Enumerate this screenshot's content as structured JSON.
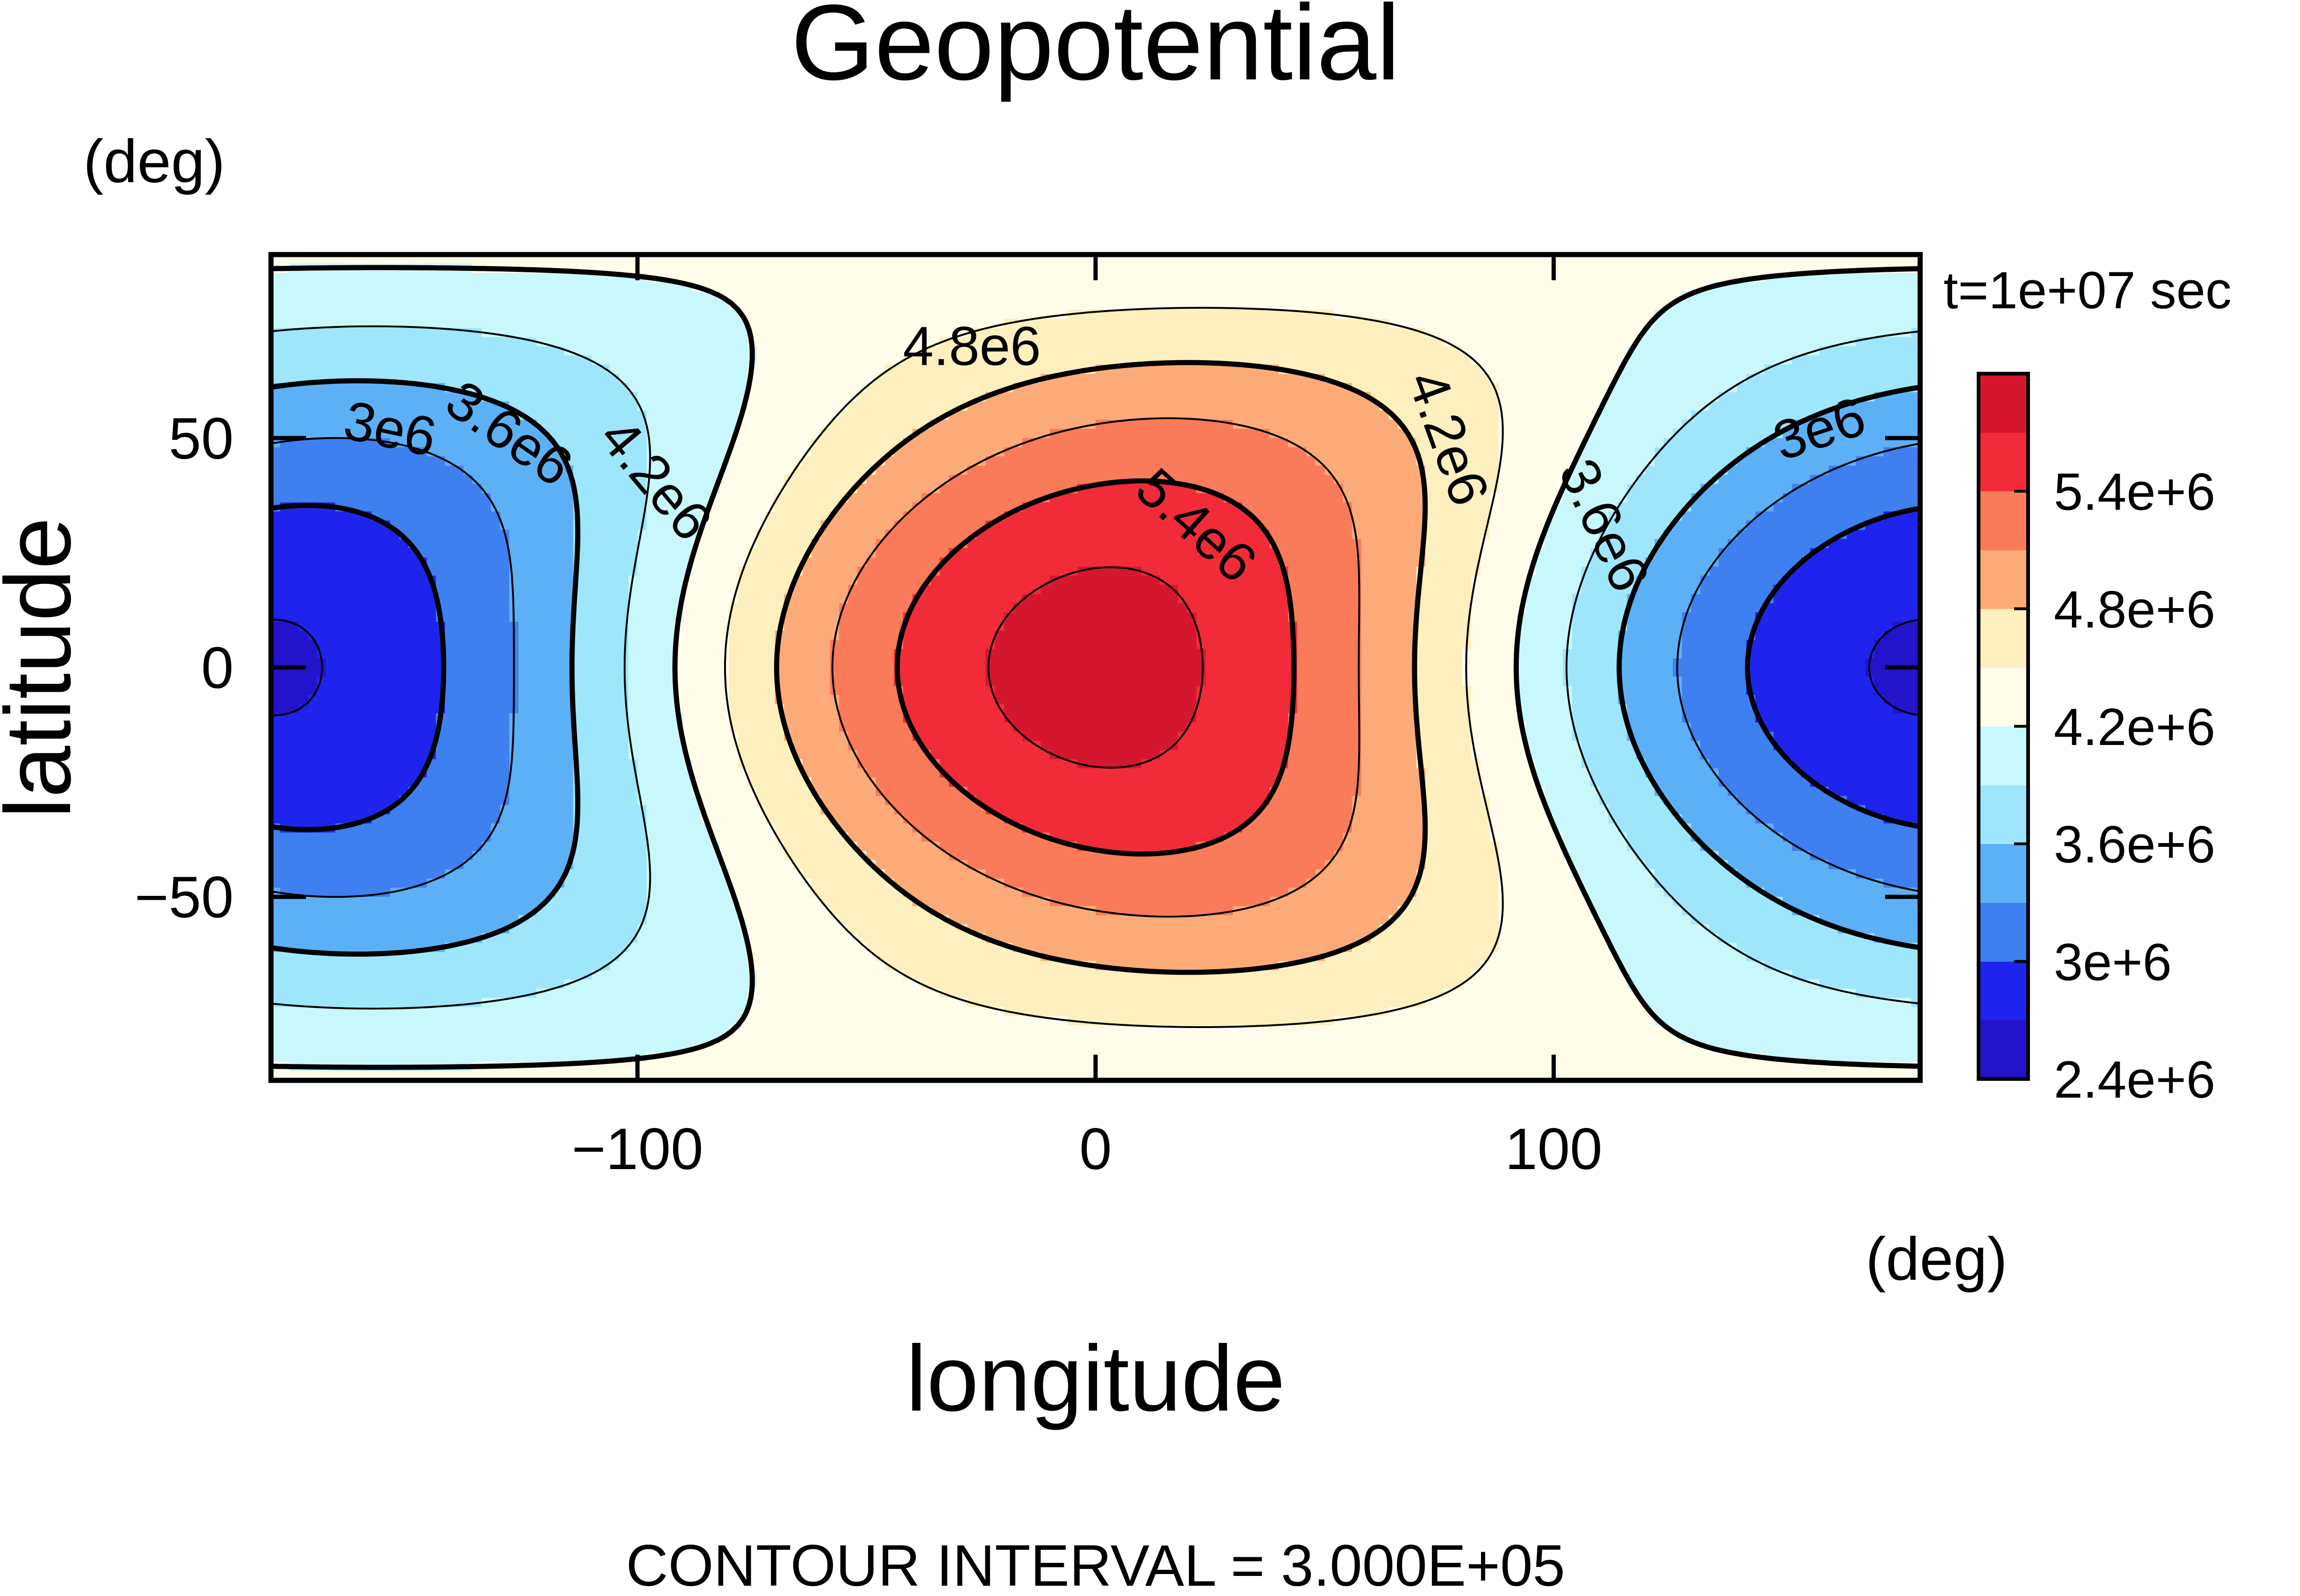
{
  "chart_data": {
    "type": "heatmap",
    "title": "Geopotential",
    "xlabel": "longitude",
    "ylabel": "latitude",
    "x_unit": "(deg)",
    "y_unit": "(deg)",
    "time_label": "t=1e+07 sec",
    "footer": "CONTOUR INTERVAL = 3.000E+05",
    "xlim": [
      -180,
      180
    ],
    "ylim": [
      -90,
      90
    ],
    "x_ticks": [
      -100,
      0,
      100
    ],
    "y_ticks": [
      -50,
      0,
      50
    ],
    "x_tick_labels": [
      "−100",
      "0",
      "100"
    ],
    "y_tick_labels": [
      "−50",
      "0",
      "50"
    ],
    "contour_interval": 300000,
    "colorbar": {
      "levels": [
        2400000,
        2700000,
        3000000,
        3300000,
        3600000,
        3900000,
        4200000,
        4500000,
        4800000,
        5100000,
        5400000,
        5700000
      ],
      "colors": [
        "#2313cb",
        "#1e24ee",
        "#3e80f0",
        "#5cb1f6",
        "#9ee6fb",
        "#c8f8fb",
        "#fffcea",
        "#fdefbe",
        "#fcab78",
        "#f97b5a",
        "#f22b39",
        "#d5172d"
      ],
      "tick_values": [
        2400000,
        3000000,
        3600000,
        4200000,
        4800000,
        5400000
      ],
      "tick_labels": [
        "2.4e+6",
        "3e+6",
        "3.6e+6",
        "4.2e+6",
        "4.8e+6",
        "5.4e+6"
      ]
    },
    "contour_labels": [
      {
        "text": "3e6",
        "lon": -154,
        "lat": 52,
        "angle": 12
      },
      {
        "text": "3.6e6",
        "lon": -128,
        "lat": 51,
        "angle": 35
      },
      {
        "text": "4.2e6",
        "lon": -96,
        "lat": 41,
        "angle": 50
      },
      {
        "text": "4.8e6",
        "lon": -27,
        "lat": 70,
        "angle": 0
      },
      {
        "text": "5.4e6",
        "lon": 22,
        "lat": 31,
        "angle": 42
      },
      {
        "text": "4.2e6",
        "lon": 77,
        "lat": 50,
        "angle": 70
      },
      {
        "text": "3.6e6",
        "lon": 111,
        "lat": 31,
        "angle": 65
      },
      {
        "text": "3e6",
        "lon": 158,
        "lat": 52,
        "angle": -18
      }
    ]
  }
}
